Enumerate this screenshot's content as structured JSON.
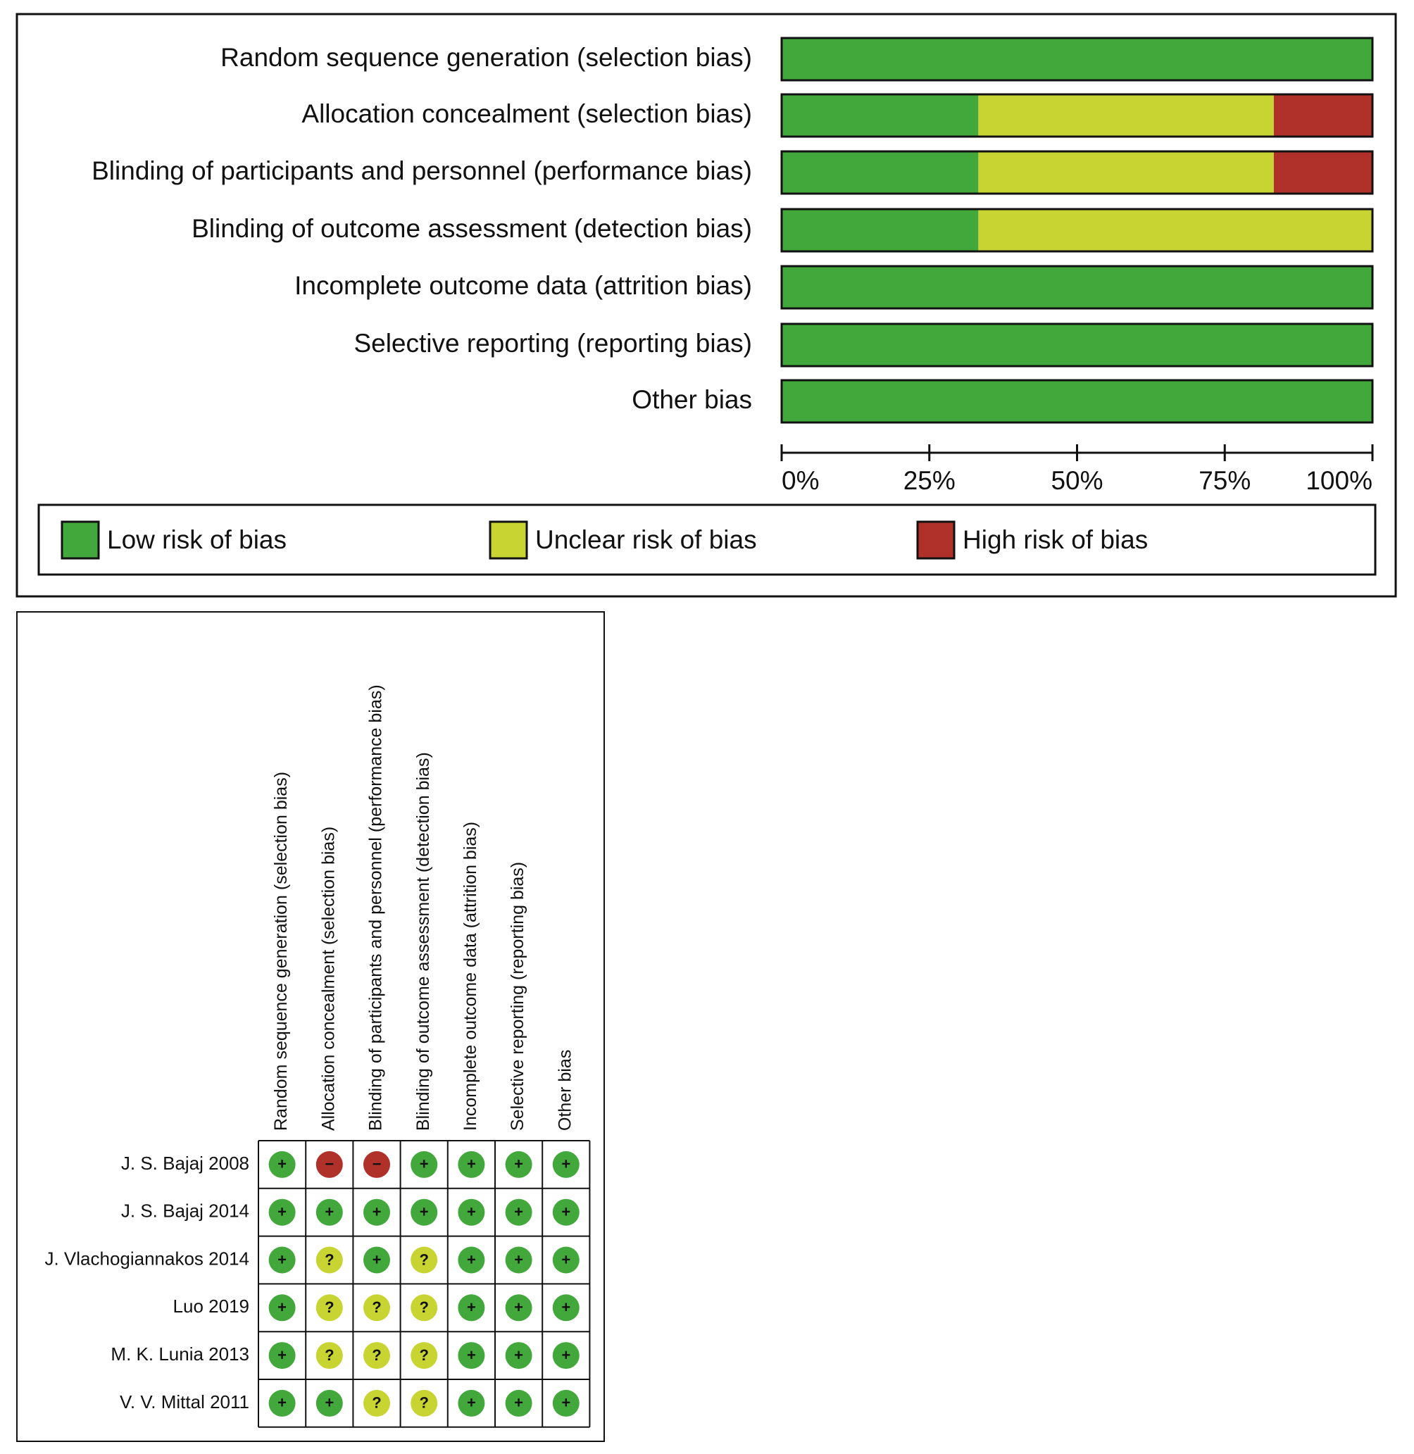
{
  "chart_data": {
    "type": "bar",
    "orientation": "horizontal",
    "stacked": true,
    "categories": [
      "Random sequence generation (selection bias)",
      "Allocation concealment (selection bias)",
      "Blinding of participants and personnel (performance bias)",
      "Blinding of outcome assessment (detection bias)",
      "Incomplete outcome data (attrition bias)",
      "Selective reporting (reporting bias)",
      "Other bias"
    ],
    "series": [
      {
        "name": "Low risk of bias",
        "color": "#43a83c",
        "symbol": "+",
        "values": [
          100,
          33.3,
          33.3,
          33.3,
          100,
          100,
          100
        ]
      },
      {
        "name": "Unclear risk of bias",
        "color": "#c8d432",
        "symbol": "?",
        "values": [
          0,
          50,
          50,
          66.7,
          0,
          0,
          0
        ]
      },
      {
        "name": "High risk of bias",
        "color": "#b0302a",
        "symbol": "−",
        "values": [
          0,
          16.7,
          16.7,
          0,
          0,
          0,
          0
        ]
      }
    ],
    "xlim": [
      0,
      100
    ],
    "xticks": [
      {
        "value": 0,
        "label": "0%"
      },
      {
        "value": 25,
        "label": "25%"
      },
      {
        "value": 50,
        "label": "50%"
      },
      {
        "value": 75,
        "label": "75%"
      },
      {
        "value": 100,
        "label": "100%"
      }
    ],
    "grid": false,
    "legend": "bottom"
  },
  "summary": {
    "studies": [
      "J. S. Bajaj 2008",
      "J. S. Bajaj 2014",
      "J. Vlachogiannakos 2014",
      "Luo 2019",
      "M. K. Lunia 2013",
      "V. V. Mittal 2011"
    ],
    "judgments": [
      [
        "+",
        "−",
        "−",
        "+",
        "+",
        "+",
        "+"
      ],
      [
        "+",
        "+",
        "+",
        "+",
        "+",
        "+",
        "+"
      ],
      [
        "+",
        "?",
        "+",
        "?",
        "+",
        "+",
        "+"
      ],
      [
        "+",
        "?",
        "?",
        "?",
        "+",
        "+",
        "+"
      ],
      [
        "+",
        "?",
        "?",
        "?",
        "+",
        "+",
        "+"
      ],
      [
        "+",
        "+",
        "?",
        "?",
        "+",
        "+",
        "+"
      ]
    ]
  }
}
